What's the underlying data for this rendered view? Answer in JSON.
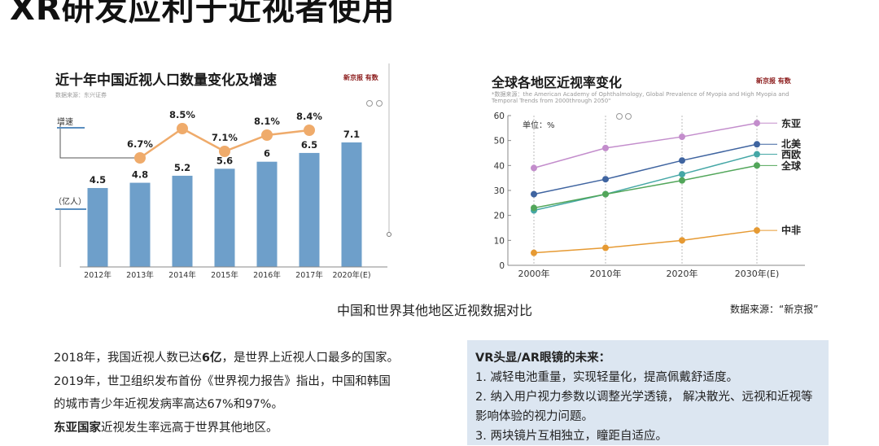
{
  "slide": {
    "title": "XR研发应利于近视者使用",
    "caption": "中国和世界其他地区近视数据对比",
    "source_note": "数据来源：“新京报”"
  },
  "chart1": {
    "title": "近十年中国近视人口数量变化及增速",
    "source": "数据来源：东兴证券",
    "brand": "新京报 有数",
    "label_growth": "增速",
    "label_unit": "（亿人）"
  },
  "chart2": {
    "title": "全球各地区近视率变化",
    "source": "*数据来源：the American Academy of Ophthalmology, Global Prevalence of Myopia and High Myopia and Temporal Trends from 2000through 2050\"",
    "brand": "新京报 有数",
    "unit_label": "单位：%"
  },
  "chart_data": [
    {
      "type": "bar",
      "title": "近十年中国近视人口数量变化及增速",
      "categories": [
        "2012年",
        "2013年",
        "2014年",
        "2015年",
        "2016年",
        "2017年",
        "2020年(E)"
      ],
      "series": [
        {
          "name": "",
          "values": [
            4.5,
            4.8,
            5.2,
            5.6,
            6,
            6.5,
            7.1
          ],
          "value_labels": [
            "4.5",
            "4.8",
            "5.2",
            "5.6",
            "6",
            "6.5",
            "7.1"
          ]
        },
        {
          "name": "增速",
          "values": [
            null,
            6.7,
            8.5,
            7.1,
            8.1,
            8.4,
            null
          ],
          "value_labels": [
            "",
            "6.7%",
            "8.5%",
            "7.1%",
            "8.1%",
            "8.4%",
            ""
          ]
        }
      ],
      "ylabel": "（亿人）",
      "ylim": [
        0,
        8
      ],
      "colors": {
        "bar": "#6e9fca",
        "growth_line": "#efab6b"
      },
      "grid": false
    },
    {
      "type": "line",
      "title": "全球各地区近视率变化",
      "x": [
        "2000年",
        "2010年",
        "2020年",
        "2030年(E)"
      ],
      "ylim": [
        0,
        60
      ],
      "yticks": [
        "0",
        "10",
        "20",
        "30",
        "40",
        "50",
        "60"
      ],
      "unit": "单位：%",
      "legend": "right",
      "grid": true,
      "series": [
        {
          "name": "东亚",
          "values": [
            39,
            47,
            51.5,
            57
          ],
          "color": "#c38dcc"
        },
        {
          "name": "北美",
          "values": [
            28.5,
            34.5,
            42,
            48.5
          ],
          "color": "#3f64a0"
        },
        {
          "name": "西欧",
          "values": [
            22,
            28.5,
            36.5,
            44.5
          ],
          "color": "#45a7a6"
        },
        {
          "name": "全球",
          "values": [
            23,
            28.5,
            34,
            40
          ],
          "color": "#52a65a"
        },
        {
          "name": "中非",
          "values": [
            5,
            7,
            10,
            14
          ],
          "color": "#e69a33"
        }
      ]
    }
  ],
  "facts": [
    {
      "pre": "2018年，我国近视人数已达",
      "bold": "6亿",
      "post": "，是世界上近视人口最多的国家。"
    },
    {
      "pre": "2019年，世卫组织发布首份《世界视力报告》指出，中国和韩国",
      "bold": "",
      "post": ""
    },
    {
      "pre": "的城市青少年近视发病率高达67%和97%。",
      "bold": "",
      "post": ""
    },
    {
      "pre": "",
      "bold": "东亚国家",
      "post": "近视发生率远高于世界其他地区。"
    }
  ],
  "future": {
    "title": "VR头显/AR眼镜的未来：",
    "items": [
      "1. 减轻电池重量，实现轻量化，提高佩戴舒适度。",
      "2. 纳入用户视力参数以调整光学透镜， 解决散光、远视和近视等影响体验的视力问题。",
      "3. 两块镜片互相独立，瞳距自适应。"
    ]
  }
}
